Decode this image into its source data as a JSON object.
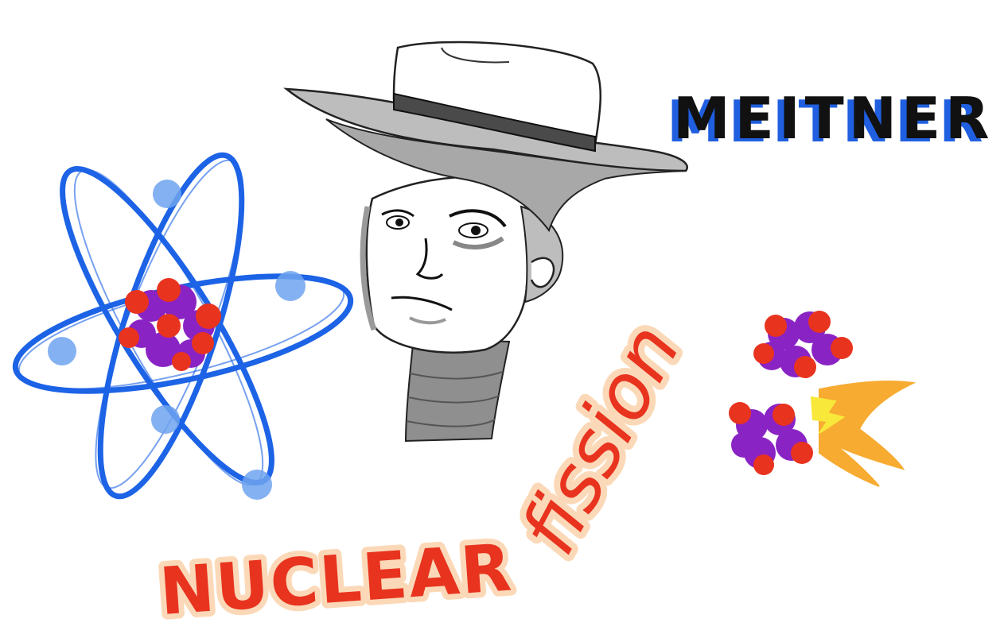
{
  "title_word": "MEITNER",
  "caption_primary": "NUCLEAR",
  "caption_secondary": "fission",
  "colors": {
    "title_ink": "#111111",
    "title_shadow": "#1f5fe0",
    "caption_ink": "#e8331f",
    "caption_glow": "#fbd9b8",
    "orbit_blue": "#1d63e6",
    "electron_blue": "#6fa3ee",
    "proton_red": "#e8331f",
    "neutron_purple": "#8a23c4",
    "spark_orange": "#f7a21b",
    "spark_yellow": "#f8e83a",
    "hat_gray": "#bdbdbd",
    "band_gray": "#4a4a4a",
    "collar_gray": "#8f8f8f"
  },
  "icons": [
    "atom-icon",
    "portrait-icon",
    "fission-icon",
    "spark-icon"
  ]
}
